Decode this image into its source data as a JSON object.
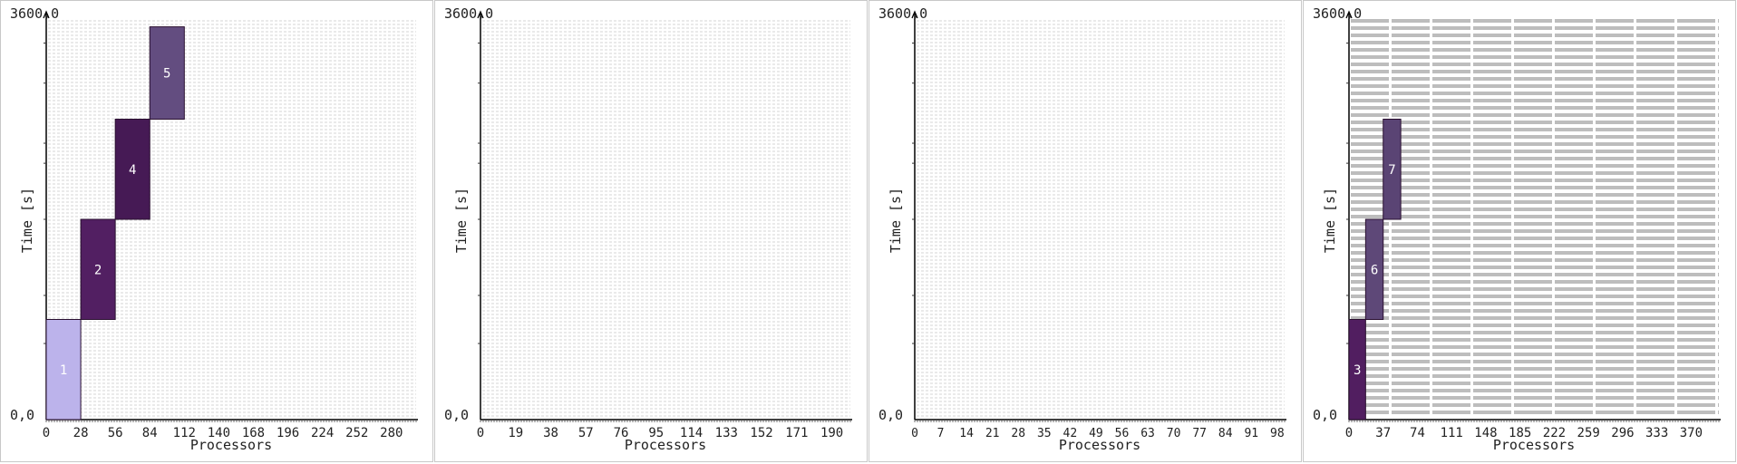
{
  "chart_data": [
    {
      "type": "bar",
      "y_top_label": "3600,0",
      "y_bottom_label": "0,0",
      "ylabel": "Time [s]",
      "xlabel": "Processors",
      "ylim": [
        0,
        3600
      ],
      "xlim": [
        0,
        300
      ],
      "x_ticks": [
        "0",
        "28",
        "56",
        "84",
        "112",
        "140",
        "168",
        "196",
        "224",
        "252",
        "280"
      ],
      "grid": "dense",
      "jobs": [
        {
          "id": "1",
          "proc_start": 0,
          "proc_end": 28,
          "t_start": 0,
          "t_end": 900,
          "color": "#bcb3eb",
          "label_color": "#ffffff"
        },
        {
          "id": "2",
          "proc_start": 28,
          "proc_end": 56,
          "t_start": 900,
          "t_end": 1800,
          "color": "#521f62",
          "label_color": "#ffffff"
        },
        {
          "id": "4",
          "proc_start": 56,
          "proc_end": 84,
          "t_start": 1800,
          "t_end": 2700,
          "color": "#461a55",
          "label_color": "#ffffff"
        },
        {
          "id": "5",
          "proc_start": 84,
          "proc_end": 112,
          "t_start": 2700,
          "t_end": 3530,
          "color": "#634d80",
          "label_color": "#ffffff"
        }
      ]
    },
    {
      "type": "bar",
      "y_top_label": "3600,0",
      "y_bottom_label": "0,0",
      "ylabel": "Time [s]",
      "xlabel": "Processors",
      "ylim": [
        0,
        3600
      ],
      "xlim": [
        0,
        200
      ],
      "x_ticks": [
        "0",
        "19",
        "38",
        "57",
        "76",
        "95",
        "114",
        "133",
        "152",
        "171",
        "190"
      ],
      "grid": "dense",
      "jobs": []
    },
    {
      "type": "bar",
      "y_top_label": "3600,0",
      "y_bottom_label": "0,0",
      "ylabel": "Time [s]",
      "xlabel": "Processors",
      "ylim": [
        0,
        3600
      ],
      "xlim": [
        0,
        100
      ],
      "x_ticks": [
        "0",
        "7",
        "14",
        "21",
        "28",
        "35",
        "42",
        "49",
        "56",
        "63",
        "70",
        "77",
        "84",
        "91",
        "98"
      ],
      "grid": "dense",
      "jobs": []
    },
    {
      "type": "bar",
      "y_top_label": "3600,0",
      "y_bottom_label": "0,0",
      "ylabel": "Time [s]",
      "xlabel": "Processors",
      "ylim": [
        0,
        3600
      ],
      "xlim": [
        0,
        400
      ],
      "x_ticks": [
        "0",
        "37",
        "74",
        "111",
        "148",
        "185",
        "222",
        "259",
        "296",
        "333",
        "370"
      ],
      "grid": "coarse",
      "jobs": [
        {
          "id": "3",
          "proc_start": 0,
          "proc_end": 18,
          "t_start": 0,
          "t_end": 900,
          "color": "#511e60",
          "label_color": "#ffffff"
        },
        {
          "id": "6",
          "proc_start": 18,
          "proc_end": 37,
          "t_start": 900,
          "t_end": 1800,
          "color": "#5e4878",
          "label_color": "#ffffff"
        },
        {
          "id": "7",
          "proc_start": 37,
          "proc_end": 56,
          "t_start": 1800,
          "t_end": 2700,
          "color": "#5a4474",
          "label_color": "#ffffff"
        }
      ]
    }
  ]
}
